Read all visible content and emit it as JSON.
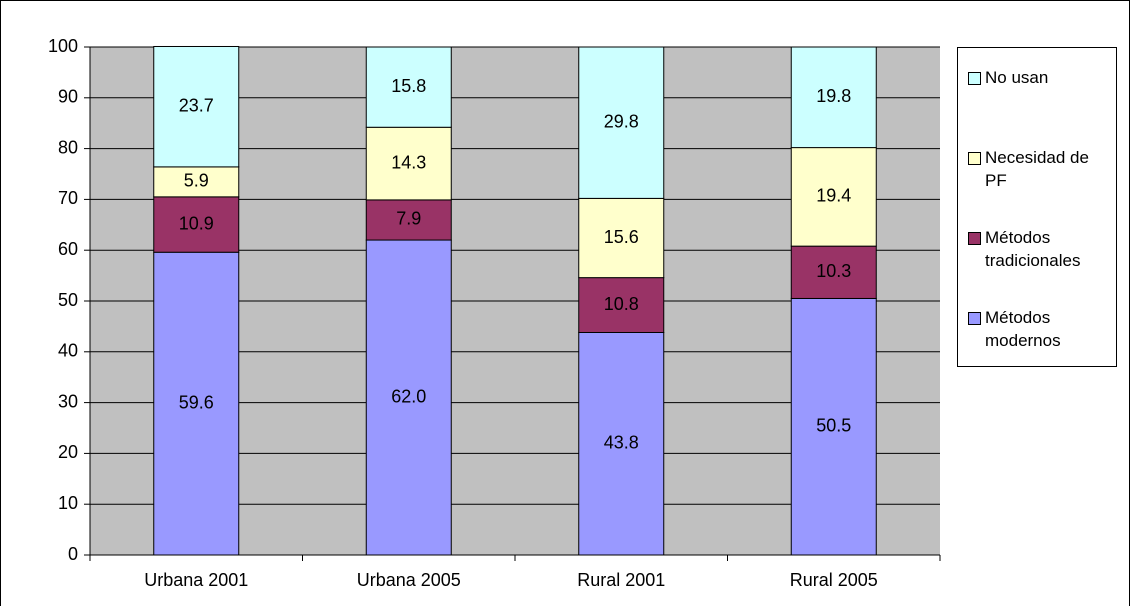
{
  "chart_data": {
    "type": "stacked-bar",
    "categories": [
      "Urbana 2001",
      "Urbana 2005",
      "Rural 2001",
      "Rural 2005"
    ],
    "series": [
      {
        "name": "Métodos modernos",
        "color": "#9999ff",
        "values": [
          59.6,
          62.0,
          43.8,
          50.5
        ],
        "value_labels": [
          "59.6",
          "62.0",
          "43.8",
          "50.5"
        ]
      },
      {
        "name": "Métodos tradicionales",
        "color": "#993366",
        "values": [
          10.9,
          7.9,
          10.8,
          10.3
        ],
        "value_labels": [
          "10.9",
          "7.9",
          "10.8",
          "10.3"
        ]
      },
      {
        "name": "Necesidad de PF",
        "color": "#ffffcc",
        "values": [
          5.9,
          14.3,
          15.6,
          19.4
        ],
        "value_labels": [
          "5.9",
          "14.3",
          "15.6",
          "19.4"
        ]
      },
      {
        "name": "No usan",
        "color": "#ccffff",
        "values": [
          23.7,
          15.8,
          29.8,
          19.8
        ],
        "value_labels": [
          "23.7",
          "15.8",
          "29.8",
          "19.8"
        ]
      }
    ],
    "ylim": [
      0,
      100
    ],
    "yticks": [
      0,
      10,
      20,
      30,
      40,
      50,
      60,
      70,
      80,
      90,
      100
    ],
    "grid": true,
    "legend": "right"
  }
}
